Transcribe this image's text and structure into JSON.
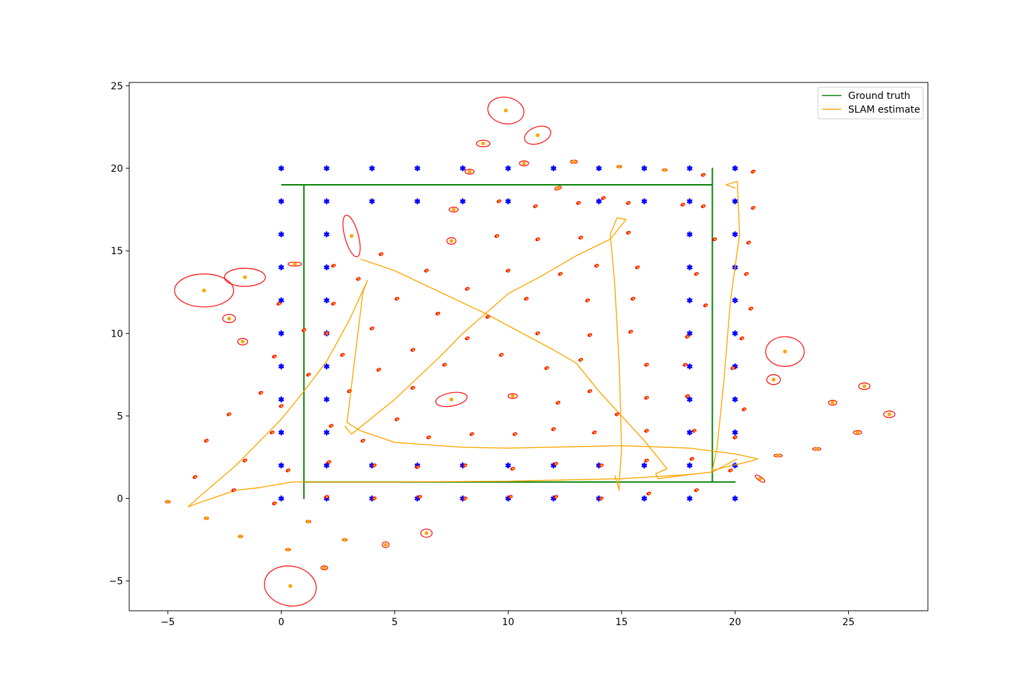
{
  "chart_data": {
    "type": "line",
    "title": "",
    "xlabel": "",
    "ylabel": "",
    "xlim": [
      -6.7,
      28.5
    ],
    "ylim": [
      -6.8,
      25.2
    ],
    "xticks": [
      -5,
      0,
      5,
      10,
      15,
      20,
      25
    ],
    "yticks": [
      -5,
      0,
      5,
      10,
      15,
      20,
      25
    ],
    "grid": false,
    "legend_position": "top-right",
    "colors": {
      "ground_truth": "#008000",
      "slam_estimate": "#FFA500",
      "true_landmark": "#0000FF",
      "landmark_estimate": "#FFA500",
      "covariance": "#FF0000"
    },
    "series": [
      {
        "name": "Ground truth",
        "points": [
          [
            0,
            19
          ],
          [
            19,
            19
          ],
          [
            19,
            20
          ],
          [
            19,
            1
          ],
          [
            20,
            1
          ],
          [
            1,
            1
          ],
          [
            1,
            0
          ],
          [
            1,
            19
          ]
        ]
      },
      {
        "name": "SLAM estimate",
        "points": [
          [
            20.1,
            2.4
          ],
          [
            19.0,
            1.6
          ],
          [
            18.0,
            1.45
          ],
          [
            15.0,
            1.2
          ],
          [
            10.0,
            1.05
          ],
          [
            5.0,
            1.0
          ],
          [
            0.5,
            1.0
          ],
          [
            -1.0,
            0.65
          ],
          [
            -2.0,
            0.5
          ],
          [
            -3.5,
            -0.2
          ],
          [
            -4.1,
            -0.5
          ],
          [
            -3.7,
            0.0
          ],
          [
            -2.0,
            2.0
          ],
          [
            0.0,
            4.8
          ],
          [
            1.0,
            6.5
          ],
          [
            2.0,
            8.3
          ],
          [
            3.0,
            10.8
          ],
          [
            3.8,
            13.2
          ],
          [
            3.6,
            12.5
          ],
          [
            2.9,
            4.6
          ],
          [
            3.5,
            4.1
          ],
          [
            5.0,
            3.4
          ],
          [
            8.0,
            3.1
          ],
          [
            10.0,
            3.05
          ],
          [
            15.0,
            3.2
          ],
          [
            18.0,
            3.05
          ],
          [
            20.0,
            2.7
          ],
          [
            21.0,
            2.4
          ],
          [
            20.8,
            2.3
          ],
          [
            19.0,
            1.7
          ],
          [
            19.2,
            3.0
          ],
          [
            19.5,
            7.0
          ],
          [
            19.8,
            12.0
          ],
          [
            20.2,
            16.0
          ],
          [
            20.1,
            19.2
          ],
          [
            19.6,
            19.0
          ],
          [
            20.0,
            18.8
          ],
          [
            19.8,
            18.9
          ]
        ]
      },
      {
        "name": "",
        "points": [
          [
            3.5,
            14.5
          ],
          [
            5.0,
            13.8
          ],
          [
            7.0,
            12.5
          ],
          [
            9.0,
            11.2
          ],
          [
            10.5,
            10.1
          ],
          [
            12.0,
            9.0
          ],
          [
            13.0,
            8.2
          ],
          [
            14.0,
            6.5
          ],
          [
            15.0,
            5.0
          ],
          [
            16.0,
            3.5
          ],
          [
            17.0,
            1.8
          ],
          [
            16.5,
            1.5
          ],
          [
            16.6,
            1.2
          ],
          [
            18.3,
            1.5
          ]
        ]
      },
      {
        "name": "",
        "points": [
          [
            2.8,
            4.4
          ],
          [
            3.1,
            3.9
          ],
          [
            5.0,
            6.0
          ],
          [
            7.0,
            8.6
          ],
          [
            8.0,
            10.0
          ],
          [
            9.0,
            11.2
          ],
          [
            10.0,
            12.4
          ],
          [
            11.5,
            13.5
          ],
          [
            13.0,
            14.7
          ],
          [
            14.5,
            15.7
          ],
          [
            15.2,
            16.9
          ],
          [
            14.8,
            17.0
          ],
          [
            14.5,
            16.0
          ],
          [
            14.7,
            13.0
          ],
          [
            14.9,
            8.0
          ],
          [
            15.0,
            3.0
          ],
          [
            14.9,
            1.0
          ],
          [
            14.9,
            0.5
          ],
          [
            14.7,
            1.4
          ]
        ]
      }
    ],
    "true_landmarks": {
      "x": [
        0,
        2,
        4,
        6,
        8,
        10,
        12,
        14,
        16,
        18,
        20
      ],
      "y": [
        0,
        2,
        4,
        6,
        8,
        10,
        12,
        14,
        16,
        18,
        20
      ],
      "note_only_perimeter": true
    },
    "landmark_estimates": [
      {
        "x": 9.9,
        "y": 23.5,
        "rx": 0.8,
        "ry": 0.8,
        "angle": 10
      },
      {
        "x": 11.3,
        "y": 22.0,
        "rx": 0.6,
        "ry": 0.5,
        "angle": -20
      },
      {
        "x": 8.9,
        "y": 21.5,
        "rx": 0.3,
        "ry": 0.2,
        "angle": 0
      },
      {
        "x": 10.7,
        "y": 20.3,
        "rx": 0.2,
        "ry": 0.15,
        "angle": 0
      },
      {
        "x": 12.9,
        "y": 20.4,
        "rx": 0.15,
        "ry": 0.1,
        "angle": 0
      },
      {
        "x": 14.9,
        "y": 20.1,
        "rx": 0.1,
        "ry": 0.07,
        "angle": 0
      },
      {
        "x": 16.9,
        "y": 19.9,
        "rx": 0.1,
        "ry": 0.07,
        "angle": 0
      },
      {
        "x": 8.3,
        "y": 19.8,
        "rx": 0.2,
        "ry": 0.15,
        "angle": 0
      },
      {
        "x": 12.2,
        "y": 18.8,
        "rx": 0.15,
        "ry": 0.1,
        "angle": -20
      },
      {
        "x": 7.6,
        "y": 17.5,
        "rx": 0.2,
        "ry": 0.15,
        "angle": 0
      },
      {
        "x": 3.1,
        "y": 15.9,
        "rx": 0.3,
        "ry": 1.3,
        "angle": -15
      },
      {
        "x": 7.5,
        "y": 15.6,
        "rx": 0.2,
        "ry": 0.2,
        "angle": 0
      },
      {
        "x": 0.6,
        "y": 14.2,
        "rx": 0.3,
        "ry": 0.12,
        "angle": 0
      },
      {
        "x": -1.6,
        "y": 13.4,
        "rx": 0.9,
        "ry": 0.55,
        "angle": 0
      },
      {
        "x": -3.4,
        "y": 12.6,
        "rx": 1.3,
        "ry": 1.0,
        "angle": 0
      },
      {
        "x": -2.3,
        "y": 10.9,
        "rx": 0.28,
        "ry": 0.25,
        "angle": 0
      },
      {
        "x": -1.7,
        "y": 9.5,
        "rx": 0.22,
        "ry": 0.2,
        "angle": 0
      },
      {
        "x": 22.2,
        "y": 8.9,
        "rx": 0.85,
        "ry": 0.9,
        "angle": 0
      },
      {
        "x": 21.7,
        "y": 7.2,
        "rx": 0.3,
        "ry": 0.3,
        "angle": 0
      },
      {
        "x": 7.5,
        "y": 6.0,
        "rx": 0.7,
        "ry": 0.4,
        "angle": -10
      },
      {
        "x": 10.2,
        "y": 6.2,
        "rx": 0.2,
        "ry": 0.15,
        "angle": 0
      },
      {
        "x": 25.7,
        "y": 6.8,
        "rx": 0.25,
        "ry": 0.2,
        "angle": 0
      },
      {
        "x": 24.3,
        "y": 5.8,
        "rx": 0.18,
        "ry": 0.15,
        "angle": 0
      },
      {
        "x": 26.8,
        "y": 5.1,
        "rx": 0.25,
        "ry": 0.2,
        "angle": 0
      },
      {
        "x": 25.4,
        "y": 4.0,
        "rx": 0.18,
        "ry": 0.12,
        "angle": 0
      },
      {
        "x": 23.6,
        "y": 3.0,
        "rx": 0.18,
        "ry": 0.08,
        "angle": 0
      },
      {
        "x": 21.9,
        "y": 2.6,
        "rx": 0.18,
        "ry": 0.06,
        "angle": 0
      },
      {
        "x": 21.1,
        "y": 1.2,
        "rx": 0.25,
        "ry": 0.12,
        "angle": 35
      },
      {
        "x": 0.4,
        "y": -5.3,
        "rx": 1.15,
        "ry": 1.2,
        "angle": 10
      },
      {
        "x": 6.4,
        "y": -2.1,
        "rx": 0.25,
        "ry": 0.25,
        "angle": 0
      },
      {
        "x": 4.6,
        "y": -2.8,
        "rx": 0.15,
        "ry": 0.18,
        "angle": 0
      },
      {
        "x": 1.9,
        "y": -4.2,
        "rx": 0.15,
        "ry": 0.12,
        "angle": 0
      },
      {
        "x": 2.8,
        "y": -2.5,
        "rx": 0.1,
        "ry": 0.08,
        "angle": 0
      },
      {
        "x": 1.2,
        "y": -1.4,
        "rx": 0.1,
        "ry": 0.08,
        "angle": 0
      },
      {
        "x": 0.3,
        "y": -3.1,
        "rx": 0.1,
        "ry": 0.08,
        "angle": 0
      },
      {
        "x": -3.3,
        "y": -1.2,
        "rx": 0.08,
        "ry": 0.06,
        "angle": 0
      },
      {
        "x": -1.8,
        "y": -2.3,
        "rx": 0.08,
        "ry": 0.06,
        "angle": 0
      },
      {
        "x": -5.0,
        "y": -0.2,
        "rx": 0.1,
        "ry": 0.06,
        "angle": 0
      }
    ],
    "small_estimates": [
      [
        2.3,
        14.1
      ],
      [
        4.4,
        14.8
      ],
      [
        3.4,
        13.3
      ],
      [
        6.4,
        13.8
      ],
      [
        8.2,
        12.7
      ],
      [
        10.0,
        13.8
      ],
      [
        12.3,
        13.6
      ],
      [
        13.9,
        14.1
      ],
      [
        15.7,
        14.0
      ],
      [
        18.3,
        13.6
      ],
      [
        18.7,
        11.7
      ],
      [
        20.7,
        11.5
      ],
      [
        20.5,
        13.6
      ],
      [
        20.6,
        15.5
      ],
      [
        19.1,
        15.7
      ],
      [
        20.8,
        17.6
      ],
      [
        18.6,
        17.7
      ],
      [
        17.7,
        17.8
      ],
      [
        15.3,
        17.9
      ],
      [
        13.1,
        17.9
      ],
      [
        11.2,
        17.7
      ],
      [
        9.6,
        18.0
      ],
      [
        14.2,
        18.2
      ],
      [
        11.3,
        15.7
      ],
      [
        9.5,
        15.9
      ],
      [
        13.2,
        15.8
      ],
      [
        15.3,
        16.1
      ],
      [
        20.8,
        19.8
      ],
      [
        18.6,
        19.6
      ],
      [
        -0.1,
        11.8
      ],
      [
        2.3,
        11.8
      ],
      [
        5.1,
        12.1
      ],
      [
        6.9,
        11.2
      ],
      [
        9.1,
        11.0
      ],
      [
        10.8,
        12.1
      ],
      [
        13.5,
        12.0
      ],
      [
        15.5,
        12.1
      ],
      [
        4.0,
        10.3
      ],
      [
        1.0,
        10.2
      ],
      [
        2.0,
        10.0
      ],
      [
        8.2,
        9.7
      ],
      [
        11.3,
        10.0
      ],
      [
        13.6,
        9.9
      ],
      [
        15.4,
        10.1
      ],
      [
        17.9,
        9.8
      ],
      [
        20.3,
        9.7
      ],
      [
        -0.3,
        8.6
      ],
      [
        2.7,
        8.7
      ],
      [
        5.8,
        9.0
      ],
      [
        9.7,
        8.7
      ],
      [
        1.2,
        7.5
      ],
      [
        4.3,
        7.8
      ],
      [
        7.2,
        8.1
      ],
      [
        11.7,
        7.9
      ],
      [
        13.2,
        8.4
      ],
      [
        16.1,
        8.1
      ],
      [
        17.8,
        8.1
      ],
      [
        19.9,
        7.9
      ],
      [
        -0.9,
        6.4
      ],
      [
        3.0,
        6.5
      ],
      [
        5.8,
        6.7
      ],
      [
        13.6,
        6.5
      ],
      [
        16.1,
        6.1
      ],
      [
        17.9,
        6.2
      ],
      [
        -2.3,
        5.1
      ],
      [
        0.0,
        5.6
      ],
      [
        5.1,
        4.8
      ],
      [
        12.2,
        5.8
      ],
      [
        14.8,
        5.1
      ],
      [
        20.4,
        5.4
      ],
      [
        -3.3,
        3.5
      ],
      [
        -0.4,
        4.0
      ],
      [
        2.2,
        4.4
      ],
      [
        3.6,
        3.5
      ],
      [
        6.5,
        3.7
      ],
      [
        8.4,
        3.9
      ],
      [
        10.3,
        3.9
      ],
      [
        12.0,
        4.2
      ],
      [
        13.8,
        4.0
      ],
      [
        16.1,
        4.1
      ],
      [
        18.2,
        4.1
      ],
      [
        20.0,
        3.7
      ],
      [
        -1.6,
        2.3
      ],
      [
        2.1,
        2.2
      ],
      [
        4.1,
        2.0
      ],
      [
        6.0,
        1.9
      ],
      [
        8.1,
        2.0
      ],
      [
        10.2,
        1.8
      ],
      [
        12.1,
        2.1
      ],
      [
        14.1,
        2.0
      ],
      [
        16.1,
        2.3
      ],
      [
        18.1,
        2.4
      ],
      [
        19.8,
        1.7
      ],
      [
        -3.8,
        1.3
      ],
      [
        0.3,
        1.7
      ],
      [
        -2.1,
        0.5
      ],
      [
        -0.3,
        -0.3
      ],
      [
        2.0,
        0.1
      ],
      [
        4.1,
        0.0
      ],
      [
        6.1,
        0.1
      ],
      [
        8.1,
        0.0
      ],
      [
        10.1,
        0.1
      ],
      [
        12.1,
        0.1
      ],
      [
        14.1,
        0.0
      ],
      [
        16.2,
        0.3
      ],
      [
        18.3,
        0.5
      ]
    ]
  }
}
